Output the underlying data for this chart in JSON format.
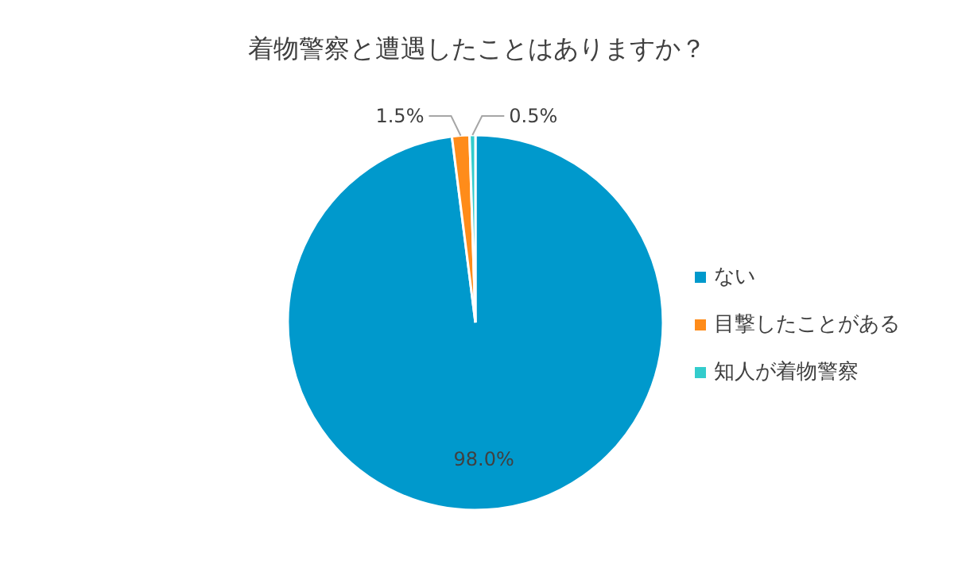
{
  "chart_data": {
    "type": "pie",
    "title": "着物警察と遭遇したことはありますか？",
    "categories": [
      "ない",
      "目撃したことがある",
      "知人が着物警察"
    ],
    "values": [
      98.0,
      1.5,
      0.5
    ],
    "colors": [
      "#0099cc",
      "#ff8c1a",
      "#33cccc"
    ],
    "value_labels": [
      "98.0%",
      "1.5%",
      "0.5%"
    ],
    "legend": "right"
  }
}
